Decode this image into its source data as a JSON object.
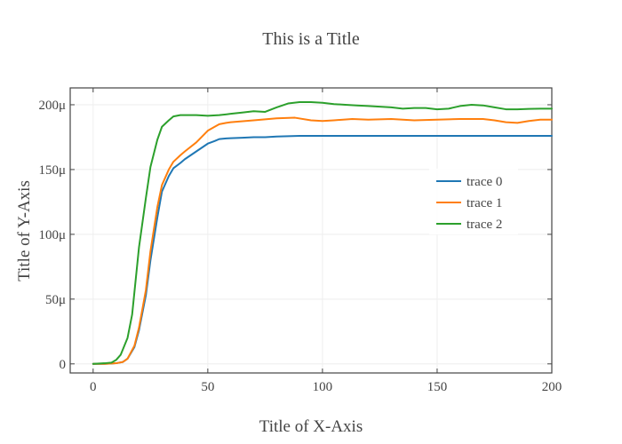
{
  "chart_data": {
    "type": "line",
    "title": "This is a Title",
    "xlabel": "Title of X-Axis",
    "ylabel": "Title of Y-Axis",
    "xlim": [
      -10,
      200
    ],
    "ylim": [
      -7e-06,
      0.000213
    ],
    "x_ticks": [
      {
        "value": 0,
        "label": "0"
      },
      {
        "value": 50,
        "label": "50"
      },
      {
        "value": 100,
        "label": "100"
      },
      {
        "value": 150,
        "label": "150"
      },
      {
        "value": 200,
        "label": "200"
      }
    ],
    "y_ticks": [
      {
        "value": 0,
        "label": "0"
      },
      {
        "value": 5e-05,
        "label": "50μ"
      },
      {
        "value": 0.0001,
        "label": "100μ"
      },
      {
        "value": 0.00015,
        "label": "150μ"
      },
      {
        "value": 0.0002,
        "label": "200μ"
      }
    ],
    "grid": true,
    "legend_position": "right",
    "series": [
      {
        "name": "trace 0",
        "color": "#1f77b4",
        "x": [
          0,
          5,
          10,
          13,
          15,
          18,
          20,
          23,
          25,
          28,
          30,
          33,
          35,
          38,
          40,
          45,
          50,
          53,
          55,
          58,
          60,
          65,
          70,
          75,
          80,
          90,
          100,
          110,
          120,
          130,
          140,
          150,
          160,
          170,
          180,
          190,
          200
        ],
        "y": [
          0,
          0,
          5e-07,
          1.5e-06,
          4e-06,
          1.3e-05,
          2.6e-05,
          5.3e-05,
          8e-05,
          0.000113,
          0.000133,
          0.000145,
          0.000151,
          0.000155,
          0.000158,
          0.000164,
          0.00017,
          0.000172,
          0.0001735,
          0.000174,
          0.0001742,
          0.0001745,
          0.000175,
          0.000175,
          0.0001755,
          0.000176,
          0.000176,
          0.000176,
          0.000176,
          0.000176,
          0.000176,
          0.000176,
          0.000176,
          0.000176,
          0.000176,
          0.000176,
          0.000176
        ]
      },
      {
        "name": "trace 1",
        "color": "#ff7f0e",
        "x": [
          0,
          5,
          10,
          13,
          15,
          18,
          20,
          23,
          25,
          28,
          30,
          33,
          35,
          38,
          40,
          45,
          50,
          53,
          55,
          58,
          60,
          70,
          80,
          88,
          95,
          100,
          105,
          113,
          120,
          130,
          140,
          150,
          160,
          170,
          175,
          180,
          185,
          190,
          195,
          200
        ],
        "y": [
          0,
          0,
          5e-07,
          1.5e-06,
          4e-06,
          1.4e-05,
          2.8e-05,
          5.7e-05,
          8.7e-05,
          0.000121,
          0.000138,
          0.00015,
          0.000156,
          0.000161,
          0.000164,
          0.000171,
          0.00018,
          0.000183,
          0.000185,
          0.000186,
          0.0001865,
          0.000188,
          0.0001895,
          0.00019,
          0.000188,
          0.0001875,
          0.000188,
          0.000189,
          0.0001885,
          0.000189,
          0.000188,
          0.0001885,
          0.000189,
          0.000189,
          0.000188,
          0.0001865,
          0.000186,
          0.0001875,
          0.0001885,
          0.0001885
        ]
      },
      {
        "name": "trace 2",
        "color": "#2ca02c",
        "x": [
          0,
          5,
          8,
          10,
          12,
          15,
          17,
          20,
          23,
          25,
          28,
          30,
          33,
          35,
          38,
          40,
          45,
          50,
          55,
          60,
          65,
          70,
          75,
          80,
          85,
          90,
          95,
          100,
          105,
          110,
          115,
          120,
          125,
          130,
          135,
          140,
          145,
          150,
          155,
          160,
          165,
          170,
          175,
          180,
          185,
          190,
          195,
          200
        ],
        "y": [
          0,
          5e-07,
          1e-06,
          3e-06,
          7e-06,
          2e-05,
          3.8e-05,
          9e-05,
          0.000128,
          0.000152,
          0.000173,
          0.000183,
          0.000188,
          0.000191,
          0.000192,
          0.000192,
          0.000192,
          0.0001915,
          0.000192,
          0.000193,
          0.000194,
          0.000195,
          0.0001945,
          0.000198,
          0.000201,
          0.000202,
          0.000202,
          0.0002015,
          0.0002005,
          0.0002,
          0.0001995,
          0.000199,
          0.0001985,
          0.000198,
          0.000197,
          0.0001975,
          0.0001975,
          0.0001965,
          0.000197,
          0.000199,
          0.0002,
          0.0001995,
          0.000198,
          0.0001965,
          0.0001965,
          0.0001968,
          0.000197,
          0.000197
        ]
      }
    ]
  }
}
